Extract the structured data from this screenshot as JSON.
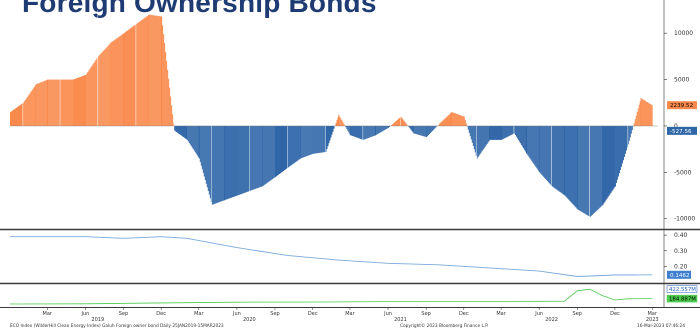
{
  "title": "Foreign Ownership Bonds",
  "chart_data": [
    {
      "type": "area",
      "panel": "main",
      "series": [
        {
          "name": "",
          "color_pos": "#fa8a4c",
          "color_neg": "#2f66a8",
          "x": [
            "2018-12",
            "2019-01",
            "2019-02",
            "2019-03",
            "2019-04",
            "2019-05",
            "2019-06",
            "2019-07",
            "2019-08",
            "2019-09",
            "2019-10",
            "2019-11",
            "2019-12",
            "2020-01",
            "2020-02",
            "2020-03",
            "2020-04",
            "2020-05",
            "2020-06",
            "2020-07",
            "2020-08",
            "2020-09",
            "2020-10",
            "2020-11",
            "2020-12",
            "2021-01",
            "2021-02",
            "2021-03",
            "2021-04",
            "2021-05",
            "2021-06",
            "2021-07",
            "2021-08",
            "2021-09",
            "2021-10",
            "2021-11",
            "2021-12",
            "2022-01",
            "2022-02",
            "2022-03",
            "2022-04",
            "2022-05",
            "2022-06",
            "2022-07",
            "2022-08",
            "2022-09",
            "2022-10",
            "2022-11",
            "2022-12",
            "2023-01",
            "2023-02",
            "2023-03"
          ],
          "values": [
            1500,
            2500,
            4500,
            5000,
            5000,
            5000,
            5500,
            7500,
            9000,
            10000,
            11000,
            12000,
            11800,
            -500,
            -1500,
            -3500,
            -8500,
            -8000,
            -7500,
            -7000,
            -6500,
            -5500,
            -4500,
            -3500,
            -3000,
            -2800,
            1200,
            -1000,
            -1500,
            -1000,
            -200,
            1000,
            -800,
            -1200,
            200,
            1500,
            1000,
            -3500,
            -1500,
            -1500,
            -800,
            -3000,
            -5000,
            -6500,
            -7500,
            -9000,
            -9800,
            -8500,
            -6500,
            -2000,
            3000,
            2200
          ]
        }
      ],
      "ylim": [
        -11000,
        12500
      ],
      "yticks": [
        "10000",
        "5000",
        "0",
        "-5000",
        "-10000"
      ],
      "last_value_labels": [
        "2239.52",
        "-527.56"
      ]
    },
    {
      "type": "line",
      "panel": "middle",
      "series": [
        {
          "name": "",
          "color": "#7aa9dd",
          "x": [
            "2018-12",
            "2019-03",
            "2019-06",
            "2019-09",
            "2019-12",
            "2020-02",
            "2020-06",
            "2020-10",
            "2021-02",
            "2021-06",
            "2021-10",
            "2022-02",
            "2022-06",
            "2022-09",
            "2022-12",
            "2023-03"
          ],
          "values": [
            0.39,
            0.39,
            0.39,
            0.38,
            0.39,
            0.38,
            0.32,
            0.27,
            0.24,
            0.22,
            0.21,
            0.19,
            0.17,
            0.135,
            0.145,
            0.146
          ]
        }
      ],
      "ylim": [
        0.1,
        0.42
      ],
      "yticks": [
        "0.40",
        "0.30",
        "0.20"
      ],
      "last_value_label": "0.1462"
    },
    {
      "type": "line",
      "panel": "bottom",
      "series": [
        {
          "name": "",
          "color": "#4ccb4c",
          "x": [
            "2018-12",
            "2019-06",
            "2020-01",
            "2020-06",
            "2021-01",
            "2021-06",
            "2022-01",
            "2022-06",
            "2022-08",
            "2022-09",
            "2022-10",
            "2022-11",
            "2022-12",
            "2023-01",
            "2023-03"
          ],
          "values": [
            50,
            55,
            80,
            95,
            100,
            110,
            115,
            118,
            120,
            380,
            420,
            260,
            150,
            180,
            185
          ]
        }
      ],
      "ylim": [
        0,
        500
      ],
      "last_value_labels": [
        "422.557M",
        "184.887M"
      ]
    }
  ],
  "x_axis": {
    "month_labels": [
      "Mar",
      "Jun",
      "Sep",
      "Dec",
      "Mar",
      "Jun",
      "Sep",
      "Dec",
      "Mar",
      "Jun",
      "Sep",
      "Dec",
      "Mar",
      "Jun",
      "Sep",
      "Dec",
      "Mar"
    ],
    "year_labels": [
      "2019",
      "2020",
      "2021",
      "2022",
      "2023"
    ]
  },
  "footer": {
    "left": "ECO Index (WilderHill Clean Energy Index) Galuh Foreign owner bond  Daily 25JAN2019-15MAR2023",
    "center": "Copyright© 2023 Bloomberg Finance L.P.",
    "right": "16-Mar-2023 07:46:24"
  }
}
